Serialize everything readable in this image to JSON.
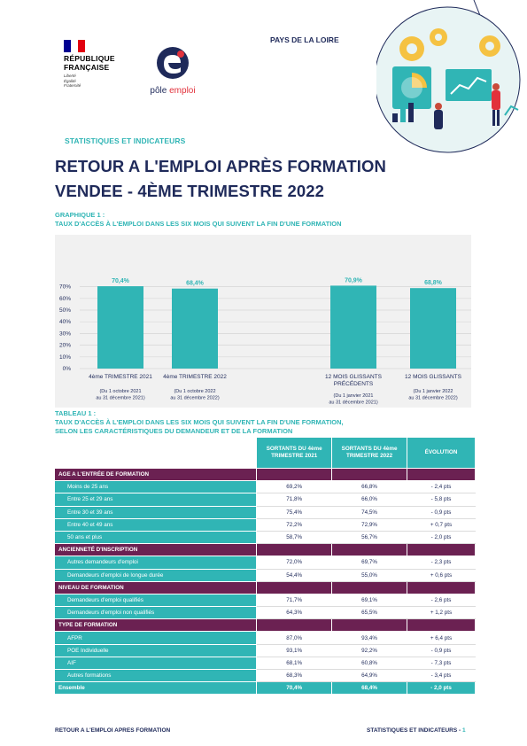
{
  "header": {
    "rf_lines": [
      "RÉPUBLIQUE",
      "FRANÇAISE"
    ],
    "rf_motto": [
      "Liberté",
      "Égalité",
      "Fraternité"
    ],
    "pe_name_a": "pôle",
    "pe_name_b": "emploi",
    "region": "PAYS DE LA LOIRE",
    "section": "STATISTIQUES ET INDICATEURS",
    "title_line1": "RETOUR A L'EMPLOI APRÈS FORMATION",
    "title_line2": "VENDEE -  4ÈME TRIMESTRE 2022"
  },
  "graph": {
    "label": "GRAPHIQUE 1 :",
    "caption": "TAUX D'ACCÈS À L'EMPLOI DANS LES SIX MOIS QUI SUIVENT LA FIN D'UNE FORMATION"
  },
  "chart_data": {
    "type": "bar",
    "categories": [
      "4ème TRIMESTRE 2021",
      "4ème TRIMESTRE 2022",
      "12 MOIS GLISSANTS PRÉCÉDENTS",
      "12 MOIS GLISSANTS"
    ],
    "category_lines": [
      [
        "4ème TRIMESTRE 2021"
      ],
      [
        "4ème TRIMESTRE 2022"
      ],
      [
        "12 MOIS GLISSANTS",
        "PRÉCÉDENTS"
      ],
      [
        "12 MOIS GLISSANTS"
      ]
    ],
    "sublabels": [
      [
        "(Du 1 octobre 2021",
        "au 31 décembre 2021)"
      ],
      [
        "(Du 1 octobre 2022",
        "au 31 décembre 2022)"
      ],
      [
        "(Du 1 janvier 2021",
        "au 31 décembre 2021)"
      ],
      [
        "(Du 1 janvier 2022",
        "au 31 décembre 2022)"
      ]
    ],
    "values": [
      70.4,
      68.4,
      70.9,
      68.8
    ],
    "data_labels": [
      "70,4%",
      "68,4%",
      "70,9%",
      "68,8%"
    ],
    "yticks": [
      "0%",
      "10%",
      "20%",
      "30%",
      "40%",
      "50%",
      "60%",
      "70%"
    ],
    "ylim": [
      0,
      75
    ],
    "bar_color": "#30b5b5",
    "grid": true
  },
  "table": {
    "label": "TABLEAU 1 :",
    "caption_l1": "TAUX D'ACCÈS À L'EMPLOI DANS LES SIX MOIS QUI SUIVENT LA FIN D'UNE FORMATION,",
    "caption_l2": "SELON LES CARACTÉRISTIQUES DU DEMANDEUR ET DE LA FORMATION",
    "col1": "SORTANTS DU 4ème TRIMESTRE 2021",
    "col2": "SORTANTS DU 4ème TRIMESTRE 2022",
    "col3": "ÉVOLUTION",
    "sections": [
      {
        "title": "AGE A L'ENTRÉE DE FORMATION",
        "rows": [
          {
            "label": "Moins de 25 ans",
            "v1": "69,2%",
            "v2": "66,8%",
            "ev": "- 2,4 pts"
          },
          {
            "label": "Entre 25 et 29 ans",
            "v1": "71,8%",
            "v2": "66,0%",
            "ev": "- 5,8 pts"
          },
          {
            "label": "Entre 30 et 39 ans",
            "v1": "75,4%",
            "v2": "74,5%",
            "ev": "- 0,9 pts"
          },
          {
            "label": "Entre 40 et 49 ans",
            "v1": "72,2%",
            "v2": "72,9%",
            "ev": "+ 0,7 pts"
          },
          {
            "label": "50 ans et plus",
            "v1": "58,7%",
            "v2": "56,7%",
            "ev": "- 2,0 pts"
          }
        ]
      },
      {
        "title": "ANCIENNETÉ D'INSCRIPTION",
        "rows": [
          {
            "label": "Autres demandeurs d'emploi",
            "v1": "72,0%",
            "v2": "69,7%",
            "ev": "- 2,3 pts"
          },
          {
            "label": "Demandeurs d'emploi de longue durée",
            "v1": "54,4%",
            "v2": "55,0%",
            "ev": "+ 0,6 pts"
          }
        ]
      },
      {
        "title": "NIVEAU DE FORMATION",
        "rows": [
          {
            "label": "Demandeurs d'emploi qualifiés",
            "v1": "71,7%",
            "v2": "69,1%",
            "ev": "- 2,6 pts"
          },
          {
            "label": "Demandeurs d'emploi non qualifiés",
            "v1": "64,3%",
            "v2": "65,5%",
            "ev": "+ 1,2 pts"
          }
        ]
      },
      {
        "title": "TYPE DE FORMATION",
        "rows": [
          {
            "label": "AFPR",
            "v1": "87,0%",
            "v2": "93,4%",
            "ev": "+ 6,4 pts"
          },
          {
            "label": "POE Individuelle",
            "v1": "93,1%",
            "v2": "92,2%",
            "ev": "- 0,9 pts"
          },
          {
            "label": "AIF",
            "v1": "68,1%",
            "v2": "60,8%",
            "ev": "- 7,3 pts"
          },
          {
            "label": "Autres formations",
            "v1": "68,3%",
            "v2": "64,9%",
            "ev": "- 3,4 pts"
          }
        ]
      }
    ],
    "total": {
      "label": "Ensemble",
      "v1": "70,4%",
      "v2": "68,4%",
      "ev": "- 2,0 pts"
    }
  },
  "footer": {
    "left": "RETOUR A L'EMPLOI APRES FORMATION",
    "right": "STATISTIQUES ET INDICATEURS - ",
    "page": "1"
  },
  "colors": {
    "navy": "#1f2a5a",
    "teal": "#30b5b5",
    "plum": "#6b2152",
    "red": "#e2313b"
  },
  "icons": [
    "marianne-flag-icon",
    "pole-emploi-logo-icon",
    "people-graphics-illustration"
  ]
}
